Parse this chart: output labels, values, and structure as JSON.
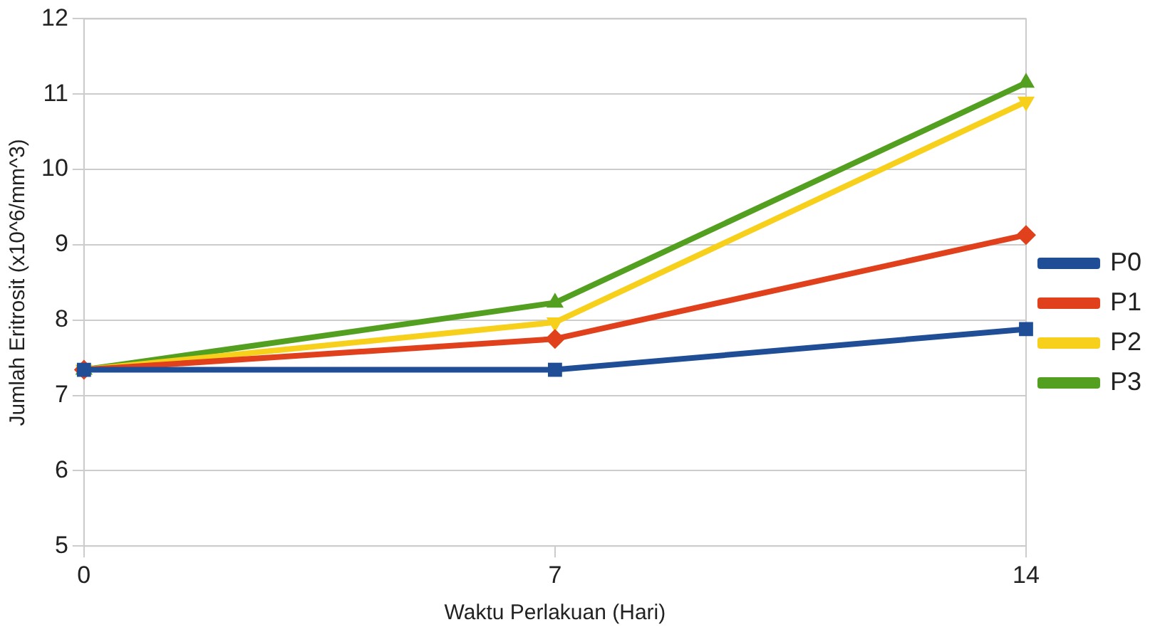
{
  "chart_data": {
    "type": "line",
    "xlabel": "Waktu Perlakuan (Hari)",
    "ylabel": "Jumlah Eritrosit (x10^6/mm^3)",
    "categories": [
      "0",
      "7",
      "14"
    ],
    "ylim": [
      5,
      12
    ],
    "yticks": [
      5,
      6,
      7,
      8,
      9,
      10,
      11,
      12
    ],
    "grid": "y",
    "legend": "right",
    "line_style": "solid",
    "series": [
      {
        "name": "P0",
        "color": "#1f4e96",
        "marker": "square",
        "values": [
          7.34,
          7.34,
          7.88
        ]
      },
      {
        "name": "P1",
        "color": "#e0401c",
        "marker": "diamond",
        "values": [
          7.34,
          7.75,
          9.13
        ]
      },
      {
        "name": "P2",
        "color": "#f7d01c",
        "marker": "triangle-down",
        "values": [
          7.34,
          7.97,
          10.9
        ]
      },
      {
        "name": "P3",
        "color": "#53a020",
        "marker": "triangle",
        "values": [
          7.34,
          8.23,
          11.15
        ]
      }
    ]
  }
}
